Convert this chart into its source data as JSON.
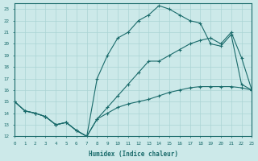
{
  "xlabel": "Humidex (Indice chaleur)",
  "ylabel": "",
  "background_color": "#cce9e9",
  "grid_color": "#aad4d4",
  "line_color": "#1a6b6b",
  "x": [
    0,
    1,
    2,
    3,
    4,
    5,
    6,
    7,
    8,
    9,
    10,
    11,
    12,
    13,
    14,
    15,
    16,
    17,
    18,
    19,
    20,
    21,
    22,
    23
  ],
  "line_max": [
    15,
    14.2,
    14.0,
    13.7,
    13.0,
    13.2,
    12.5,
    12.0,
    17.0,
    19.0,
    20.5,
    21.0,
    22.0,
    22.5,
    23.3,
    23.0,
    22.5,
    22.0,
    21.8,
    20.0,
    19.8,
    20.8,
    16.5,
    16.0
  ],
  "line_mean": [
    15,
    14.2,
    14.0,
    13.7,
    13.0,
    13.2,
    12.5,
    12.0,
    13.5,
    14.5,
    15.5,
    16.5,
    17.5,
    18.5,
    18.5,
    19.0,
    19.5,
    20.0,
    20.3,
    20.5,
    20.0,
    21.0,
    18.8,
    16.0
  ],
  "line_min": [
    15,
    14.2,
    14.0,
    13.7,
    13.0,
    13.2,
    12.5,
    12.0,
    13.5,
    14.0,
    14.5,
    14.8,
    15.0,
    15.2,
    15.5,
    15.8,
    16.0,
    16.2,
    16.3,
    16.3,
    16.3,
    16.3,
    16.2,
    16.0
  ],
  "xlim": [
    0,
    23
  ],
  "ylim": [
    12,
    23.5
  ],
  "yticks": [
    12,
    13,
    14,
    15,
    16,
    17,
    18,
    19,
    20,
    21,
    22,
    23
  ],
  "xticks": [
    0,
    1,
    2,
    3,
    4,
    5,
    6,
    7,
    8,
    9,
    10,
    11,
    12,
    13,
    14,
    15,
    16,
    17,
    18,
    19,
    20,
    21,
    22,
    23
  ]
}
